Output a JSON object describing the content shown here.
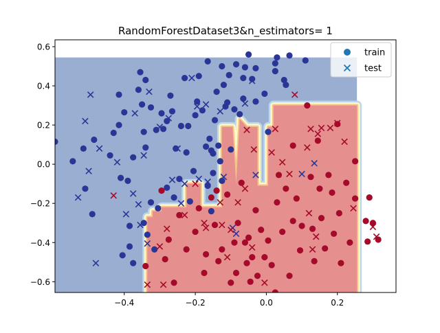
{
  "chart_data": {
    "type": "scatter",
    "title": "RandomForestDataset3&n_estimators= 1",
    "xlabel": "",
    "ylabel": "",
    "xlim": [
      -0.595,
      0.365
    ],
    "ylim": [
      -0.655,
      0.635
    ],
    "xticks": [
      -0.4,
      -0.2,
      0.0,
      0.2
    ],
    "xtick_labels": [
      "−0.4",
      "−0.2",
      "0.0",
      "0.2"
    ],
    "yticks": [
      -0.6,
      -0.4,
      -0.2,
      0.0,
      0.2,
      0.4,
      0.6
    ],
    "ytick_labels": [
      "−0.6",
      "−0.4",
      "−0.2",
      "0.0",
      "0.2",
      "0.4",
      "0.6"
    ],
    "grid": false,
    "legend": {
      "position": "top-right",
      "entries": [
        {
          "label": "train",
          "marker": "circle",
          "color": "#1f77b4"
        },
        {
          "label": "test",
          "marker": "x",
          "color": "#1f77b4"
        }
      ]
    },
    "colors": {
      "class0": "#2b3596",
      "class1": "#a50a2a",
      "region0": "#9aaed2",
      "region1": "#e5908f",
      "boundary_light_blue": "#bcd7ea",
      "boundary_cream": "#fdf8c8",
      "boundary_orange": "#f6c38b"
    },
    "decision_region": {
      "extent_x": [
        -0.595,
        0.255
      ],
      "extent_y": [
        -0.655,
        0.545
      ],
      "class1_polygon": [
        [
          -0.335,
          -0.655
        ],
        [
          0.255,
          -0.655
        ],
        [
          0.255,
          0.3
        ],
        [
          0.02,
          0.3
        ],
        [
          0.02,
          0.19
        ],
        [
          0.005,
          0.19
        ],
        [
          0.005,
          -0.11
        ],
        [
          -0.025,
          -0.11
        ],
        [
          -0.025,
          0.19
        ],
        [
          -0.055,
          0.19
        ],
        [
          -0.075,
          0.23
        ],
        [
          -0.085,
          -0.1
        ],
        [
          -0.095,
          0.19
        ],
        [
          -0.125,
          0.19
        ],
        [
          -0.125,
          -0.22
        ],
        [
          -0.185,
          -0.22
        ],
        [
          -0.185,
          -0.1
        ],
        [
          -0.225,
          -0.1
        ],
        [
          -0.225,
          -0.22
        ],
        [
          -0.295,
          -0.22
        ],
        [
          -0.295,
          -0.24
        ],
        [
          -0.32,
          -0.24
        ],
        [
          -0.32,
          -0.27
        ],
        [
          -0.335,
          -0.27
        ]
      ]
    },
    "series": [
      {
        "name": "train",
        "class": 0,
        "points": [
          [
            -0.595,
            0.115
          ],
          [
            -0.545,
            0.015
          ],
          [
            -0.515,
            0.08
          ],
          [
            -0.51,
            -0.125
          ],
          [
            -0.49,
            -0.255
          ],
          [
            -0.485,
            0.125
          ],
          [
            -0.44,
            0.045
          ],
          [
            -0.43,
            0.16
          ],
          [
            -0.415,
            0.2
          ],
          [
            -0.415,
            0.355
          ],
          [
            -0.41,
            -0.07
          ],
          [
            -0.405,
            -0.465
          ],
          [
            -0.4,
            0.265
          ],
          [
            -0.39,
            -0.085
          ],
          [
            -0.385,
            -0.315
          ],
          [
            -0.385,
            -0.42
          ],
          [
            -0.375,
            -0.505
          ],
          [
            -0.375,
            0.035
          ],
          [
            -0.36,
            0.38
          ],
          [
            -0.355,
            0.47
          ],
          [
            -0.35,
            0.305
          ],
          [
            -0.345,
            0.165
          ],
          [
            -0.345,
            -0.3
          ],
          [
            -0.34,
            0.43
          ],
          [
            -0.34,
            0.085
          ],
          [
            -0.335,
            -0.36
          ],
          [
            -0.325,
            -0.195
          ],
          [
            -0.325,
            0.29
          ],
          [
            -0.315,
            -0.435
          ],
          [
            -0.31,
            0.175
          ],
          [
            -0.305,
            -0.225
          ],
          [
            -0.295,
            0.26
          ],
          [
            -0.29,
            0.18
          ],
          [
            -0.28,
            -0.12
          ],
          [
            -0.28,
            0.22
          ],
          [
            -0.27,
            0.35
          ],
          [
            -0.265,
            0.27
          ],
          [
            -0.26,
            -0.17
          ],
          [
            -0.255,
            0.08
          ],
          [
            -0.245,
            -0.075
          ],
          [
            -0.24,
            0.195
          ],
          [
            -0.23,
            0.44
          ],
          [
            -0.225,
            0.06
          ],
          [
            -0.22,
            0.195
          ],
          [
            -0.215,
            -0.19
          ],
          [
            -0.205,
            -0.035
          ],
          [
            -0.2,
            0.25
          ],
          [
            -0.195,
            0.32
          ],
          [
            -0.19,
            0.45
          ],
          [
            -0.18,
            0.275
          ],
          [
            -0.17,
            0.09
          ],
          [
            -0.165,
            0.525
          ],
          [
            -0.165,
            -0.11
          ],
          [
            -0.16,
            0.13
          ],
          [
            -0.155,
            -0.24
          ],
          [
            -0.155,
            0.07
          ],
          [
            -0.15,
            0.055
          ],
          [
            -0.15,
            -0.045
          ],
          [
            -0.145,
            0.225
          ],
          [
            -0.14,
            0.37
          ],
          [
            -0.135,
            0.095
          ],
          [
            -0.13,
            0.015
          ],
          [
            -0.125,
            -0.085
          ],
          [
            -0.125,
            0.5
          ],
          [
            -0.12,
            0.405
          ],
          [
            -0.115,
            0.295
          ],
          [
            -0.11,
            0.315
          ],
          [
            -0.105,
            0.455
          ],
          [
            -0.1,
            0.075
          ],
          [
            -0.09,
            0.28
          ],
          [
            -0.085,
            0.51
          ],
          [
            -0.075,
            0.255
          ],
          [
            -0.065,
            0.44
          ],
          [
            -0.065,
            0.335
          ],
          [
            -0.06,
            0.495
          ],
          [
            -0.05,
            0.56
          ],
          [
            -0.04,
            0.435
          ],
          [
            -0.03,
            0.49
          ],
          [
            -0.03,
            0.32
          ],
          [
            -0.005,
            0.36
          ],
          [
            0.005,
            0.165
          ],
          [
            0.025,
            0.515
          ],
          [
            0.025,
            0.475
          ],
          [
            0.03,
            0.545
          ],
          [
            0.05,
            0.43
          ],
          [
            0.055,
            0.405
          ],
          [
            0.065,
            0.555
          ],
          [
            0.11,
            0.53
          ]
        ]
      },
      {
        "name": "train",
        "class": 1,
        "points": [
          [
            -0.34,
            -0.52
          ],
          [
            -0.295,
            -0.135
          ],
          [
            -0.285,
            -0.485
          ],
          [
            -0.275,
            -0.385
          ],
          [
            -0.26,
            -0.605
          ],
          [
            -0.245,
            -0.26
          ],
          [
            -0.225,
            -0.435
          ],
          [
            -0.2,
            -0.345
          ],
          [
            -0.19,
            -0.225
          ],
          [
            -0.175,
            -0.555
          ],
          [
            -0.17,
            -0.46
          ],
          [
            -0.155,
            -0.17
          ],
          [
            -0.145,
            -0.31
          ],
          [
            -0.14,
            -0.135
          ],
          [
            -0.135,
            -0.495
          ],
          [
            -0.125,
            -0.435
          ],
          [
            -0.11,
            -0.155
          ],
          [
            -0.1,
            -0.605
          ],
          [
            -0.09,
            -0.4
          ],
          [
            -0.085,
            -0.555
          ],
          [
            -0.08,
            -0.3
          ],
          [
            -0.07,
            -0.095
          ],
          [
            -0.06,
            -0.4
          ],
          [
            -0.055,
            -0.505
          ],
          [
            -0.05,
            -0.375
          ],
          [
            -0.045,
            -0.6
          ],
          [
            -0.04,
            -0.475
          ],
          [
            -0.03,
            -0.235
          ],
          [
            -0.025,
            -0.57
          ],
          [
            -0.015,
            -0.335
          ],
          [
            -0.005,
            -0.475
          ],
          [
            0.005,
            -0.39
          ],
          [
            0.015,
            -0.515
          ],
          [
            0.025,
            -0.655
          ],
          [
            0.03,
            -0.195
          ],
          [
            0.035,
            -0.055
          ],
          [
            0.045,
            -0.345
          ],
          [
            0.055,
            -0.125
          ],
          [
            0.065,
            -0.57
          ],
          [
            0.075,
            -0.29
          ],
          [
            0.075,
            0.095
          ],
          [
            0.085,
            -0.175
          ],
          [
            0.095,
            -0.44
          ],
          [
            0.1,
            -0.315
          ],
          [
            0.115,
            0.3
          ],
          [
            0.125,
            -0.065
          ],
          [
            0.13,
            -0.33
          ],
          [
            0.135,
            -0.495
          ],
          [
            0.145,
            0.12
          ],
          [
            0.15,
            -0.125
          ],
          [
            0.155,
            -0.275
          ],
          [
            0.165,
            -0.43
          ],
          [
            0.175,
            -0.055
          ],
          [
            0.185,
            -0.145
          ],
          [
            0.19,
            -0.355
          ],
          [
            0.2,
            0.205
          ],
          [
            0.205,
            -0.25
          ],
          [
            0.21,
            -0.505
          ],
          [
            0.225,
            -0.095
          ],
          [
            0.235,
            -0.4
          ],
          [
            0.25,
            0.015
          ],
          [
            0.25,
            -0.175
          ],
          [
            0.28,
            -0.29
          ],
          [
            0.285,
            -0.395
          ],
          [
            0.315,
            -0.385
          ],
          [
            0.29,
            -0.17
          ],
          [
            0.3,
            -0.3
          ]
        ]
      },
      {
        "name": "test",
        "class": 0,
        "points": [
          [
            -0.53,
            -0.17
          ],
          [
            -0.51,
            0.22
          ],
          [
            -0.5,
            -0.035
          ],
          [
            -0.495,
            0.355
          ],
          [
            -0.48,
            -0.505
          ],
          [
            -0.47,
            0.08
          ],
          [
            -0.42,
            0.01
          ],
          [
            -0.395,
            -0.255
          ],
          [
            -0.375,
            -0.15
          ],
          [
            -0.37,
            0.26
          ],
          [
            -0.36,
            -0.205
          ],
          [
            -0.355,
            -0.31
          ],
          [
            -0.345,
            0.045
          ],
          [
            -0.335,
            -0.405
          ],
          [
            -0.33,
            0.37
          ],
          [
            -0.3,
            0.19
          ],
          [
            -0.275,
            0.235
          ],
          [
            -0.265,
            -0.08
          ],
          [
            -0.25,
            0.08
          ],
          [
            -0.24,
            -0.2
          ],
          [
            -0.23,
            -0.1
          ],
          [
            -0.21,
            0.44
          ],
          [
            -0.195,
            0.295
          ],
          [
            -0.19,
            -0.075
          ],
          [
            -0.17,
            0.305
          ],
          [
            -0.165,
            -0.09
          ],
          [
            -0.13,
            0.27
          ],
          [
            -0.12,
            -0.065
          ],
          [
            -0.095,
            -0.325
          ],
          [
            -0.085,
            -0.355
          ],
          [
            -0.06,
            0.31
          ],
          [
            -0.04,
            0.425
          ],
          [
            -0.03,
            -0.055
          ],
          [
            0.1,
            -0.05
          ],
          [
            0.135,
            0.005
          ]
        ]
      },
      {
        "name": "test",
        "class": 1,
        "points": [
          [
            -0.43,
            -0.16
          ],
          [
            -0.335,
            -0.615
          ],
          [
            -0.3,
            -0.42
          ],
          [
            -0.29,
            -0.615
          ],
          [
            -0.28,
            -0.33
          ],
          [
            -0.23,
            -0.26
          ],
          [
            -0.2,
            -0.1
          ],
          [
            -0.175,
            -0.3
          ],
          [
            -0.17,
            -0.325
          ],
          [
            -0.13,
            -0.195
          ],
          [
            -0.125,
            -0.31
          ],
          [
            -0.11,
            -0.475
          ],
          [
            -0.1,
            -0.335
          ],
          [
            -0.08,
            -0.195
          ],
          [
            -0.06,
            -0.125
          ],
          [
            -0.055,
            0.175
          ],
          [
            -0.04,
            -0.425
          ],
          [
            -0.035,
            0.075
          ],
          [
            -0.005,
            -0.605
          ],
          [
            0.015,
            0.06
          ],
          [
            0.025,
            0.18
          ],
          [
            0.045,
            0.01
          ],
          [
            0.065,
            -0.05
          ],
          [
            0.08,
            0.355
          ],
          [
            0.115,
            0.085
          ],
          [
            0.12,
            -0.25
          ],
          [
            0.125,
            0.18
          ],
          [
            0.13,
            -0.435
          ],
          [
            0.14,
            -0.37
          ],
          [
            0.145,
            0.155
          ],
          [
            0.155,
            0.185
          ],
          [
            0.18,
            0.185
          ],
          [
            0.2,
            0.21
          ],
          [
            0.22,
            0.115
          ],
          [
            0.245,
            -0.225
          ],
          [
            0.3,
            -0.32
          ],
          [
            0.31,
            -0.37
          ]
        ]
      }
    ]
  }
}
